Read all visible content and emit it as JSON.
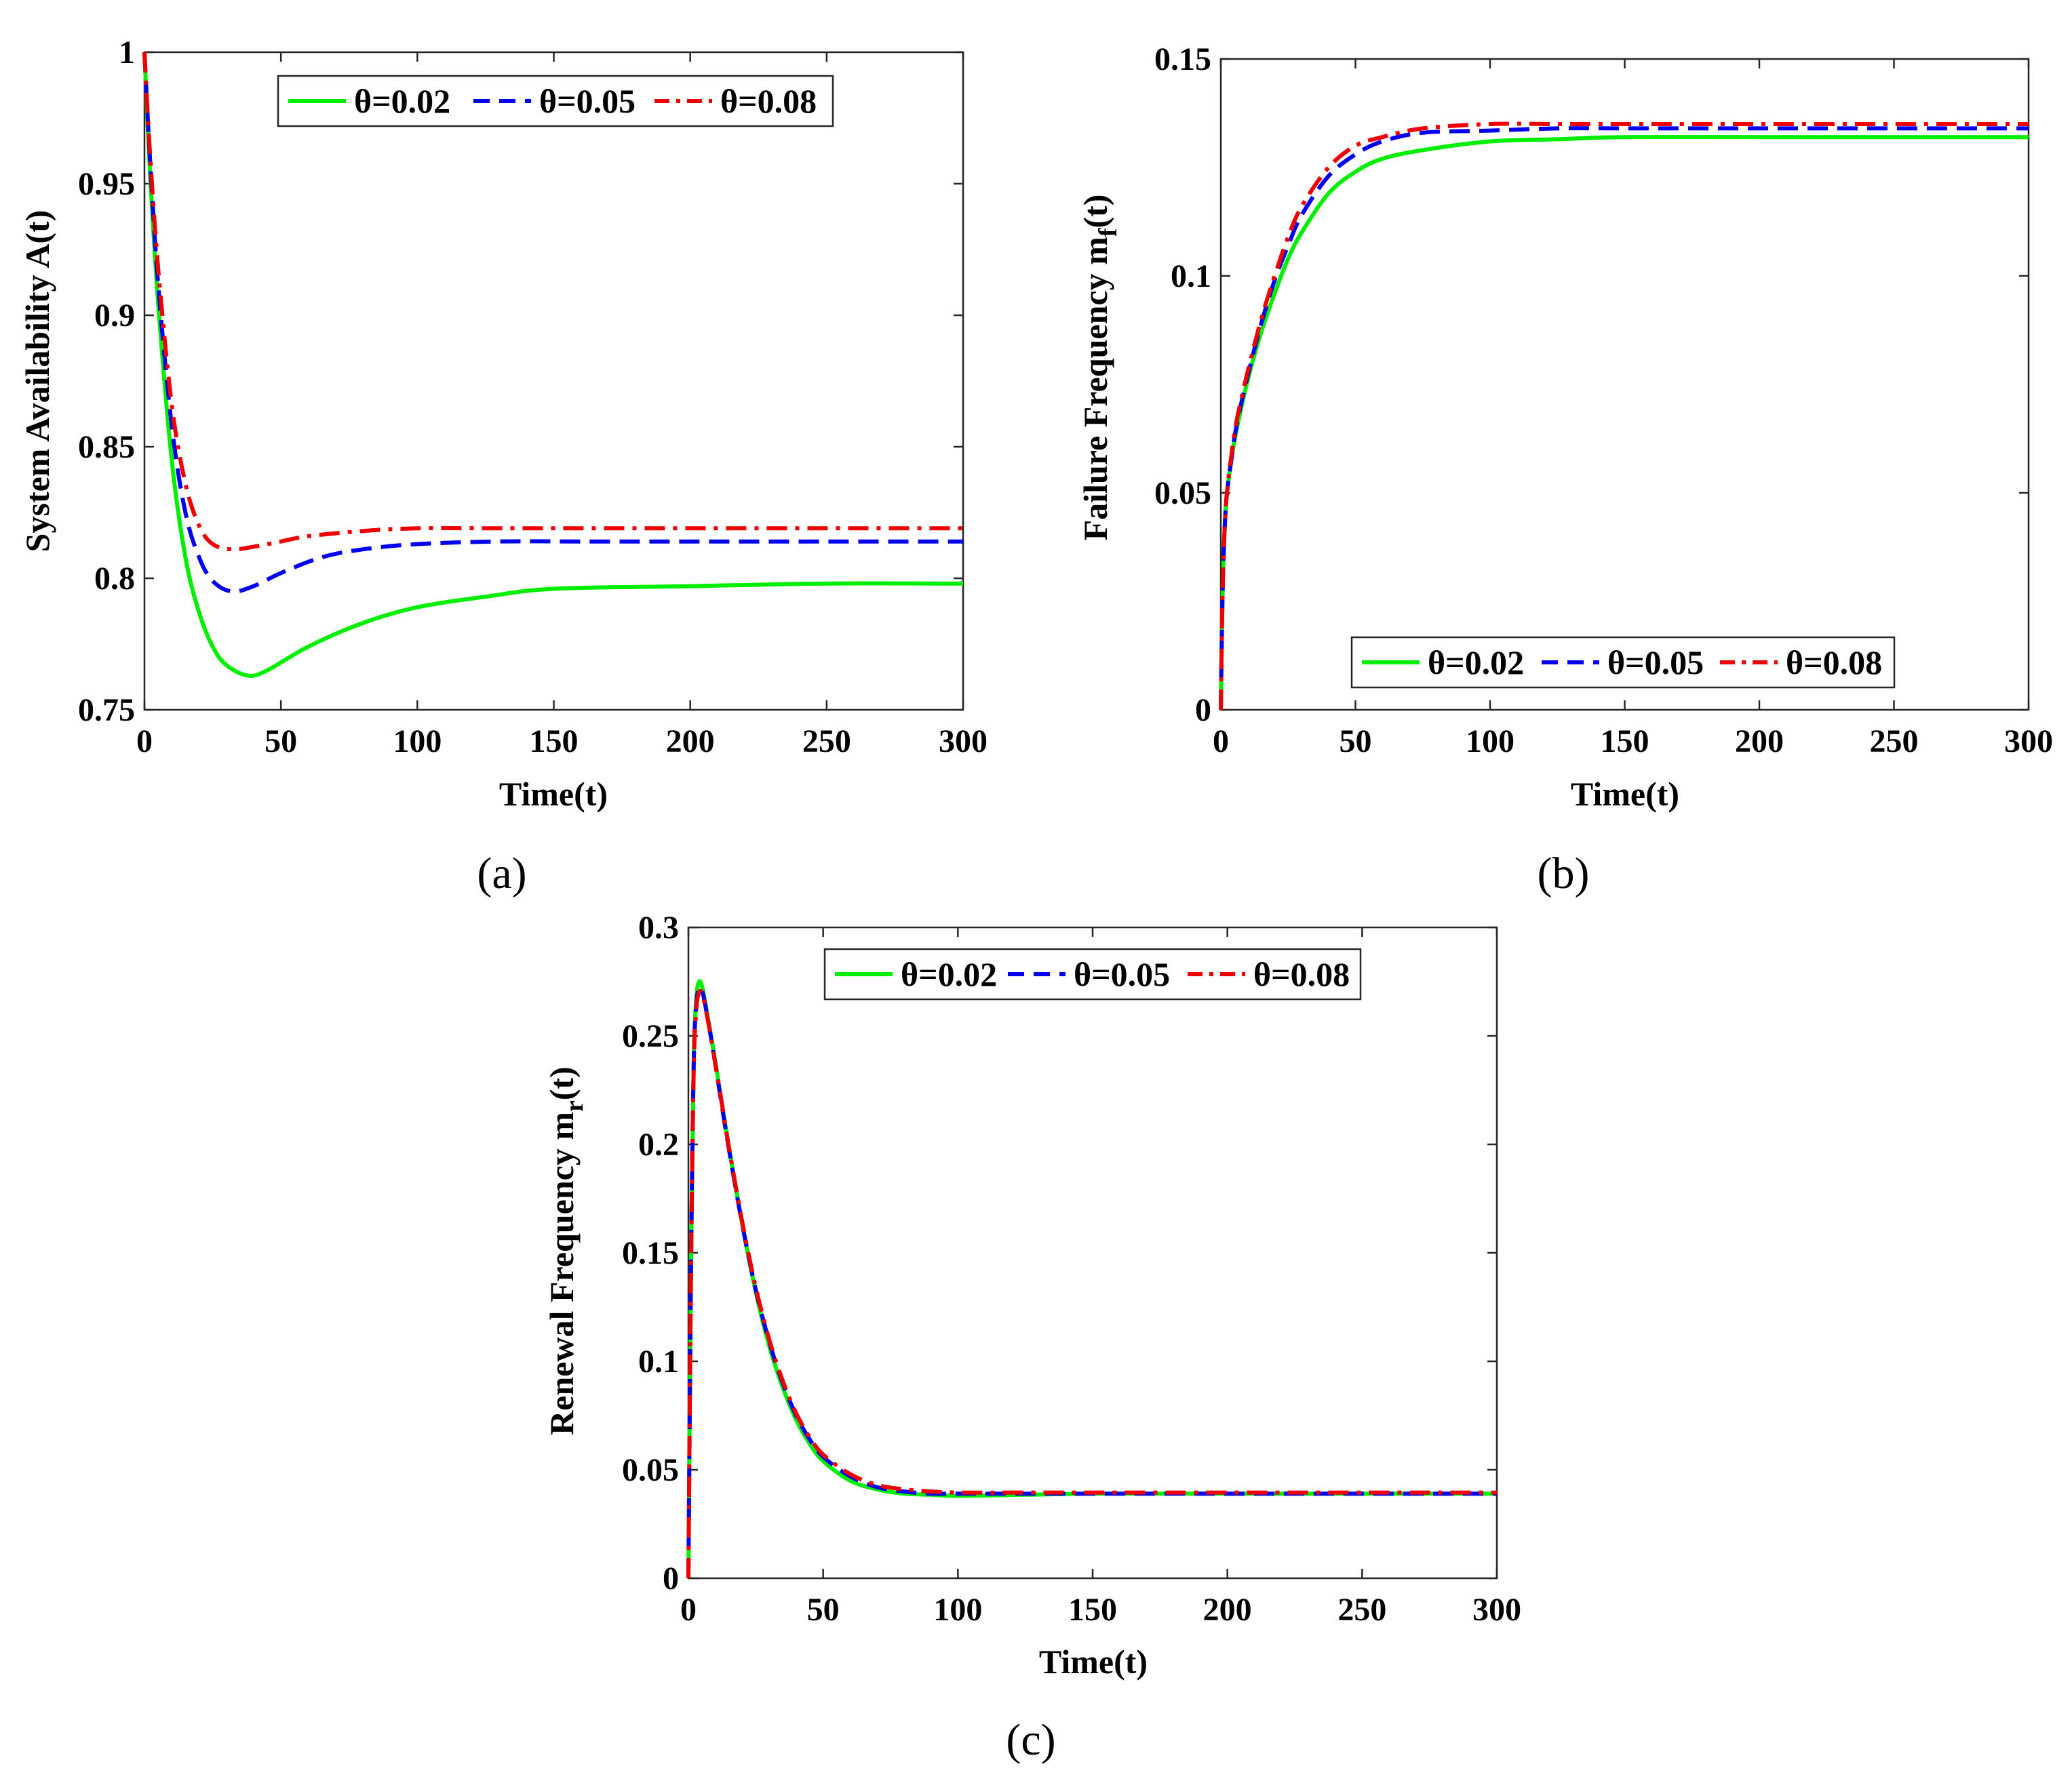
{
  "chart_data": [
    {
      "id": "a",
      "type": "line",
      "caption": "(a)",
      "xlabel": "Time(t)",
      "ylabel": "System Availability A(t)",
      "xlim": [
        0,
        300
      ],
      "ylim": [
        0.75,
        1
      ],
      "xticks": [
        0,
        50,
        100,
        150,
        200,
        250,
        300
      ],
      "yticks": [
        0.75,
        0.8,
        0.85,
        0.9,
        0.95,
        1
      ],
      "ytick_labels": [
        "0.75",
        "0.8",
        "0.85",
        "0.9",
        "0.95",
        "1"
      ],
      "legend_position": "top",
      "series": [
        {
          "name": "θ=0.02",
          "color": "#00ee00",
          "dash": "solid",
          "x": [
            0,
            2,
            5,
            10,
            15,
            20,
            25,
            30,
            38,
            45,
            60,
            80,
            100,
            125,
            150,
            200,
            250,
            300
          ],
          "y": [
            1,
            0.955,
            0.905,
            0.845,
            0.808,
            0.787,
            0.774,
            0.767,
            0.763,
            0.765,
            0.774,
            0.783,
            0.789,
            0.793,
            0.796,
            0.797,
            0.798,
            0.798
          ]
        },
        {
          "name": "θ=0.05",
          "color": "#0000ee",
          "dash": "dash",
          "x": [
            0,
            2,
            5,
            10,
            15,
            20,
            25,
            32,
            40,
            50,
            65,
            80,
            100,
            130,
            160,
            200,
            250,
            300
          ],
          "y": [
            1,
            0.96,
            0.912,
            0.858,
            0.825,
            0.808,
            0.799,
            0.795,
            0.797,
            0.802,
            0.808,
            0.811,
            0.813,
            0.814,
            0.814,
            0.814,
            0.814,
            0.814
          ]
        },
        {
          "name": "θ=0.08",
          "color": "#ee0000",
          "dash": "dashdot",
          "x": [
            0,
            2,
            5,
            10,
            15,
            20,
            25,
            32,
            40,
            50,
            60,
            80,
            100,
            130,
            160,
            200,
            250,
            300
          ],
          "y": [
            1,
            0.962,
            0.918,
            0.866,
            0.836,
            0.82,
            0.813,
            0.811,
            0.812,
            0.814,
            0.816,
            0.818,
            0.819,
            0.819,
            0.819,
            0.819,
            0.819,
            0.819
          ]
        }
      ]
    },
    {
      "id": "b",
      "type": "line",
      "caption": "(b)",
      "xlabel": "Time(t)",
      "ylabel": "Failure Frequency m_f(t)",
      "ylabel_main": "Failure Frequency m",
      "ylabel_sub": "f",
      "ylabel_tail": "(t)",
      "xlim": [
        0,
        300
      ],
      "ylim": [
        0,
        0.15
      ],
      "xticks": [
        0,
        50,
        100,
        150,
        200,
        250,
        300
      ],
      "yticks": [
        0,
        0.05,
        0.1,
        0.15
      ],
      "ytick_labels": [
        "0",
        "0.05",
        "0.1",
        "0.15"
      ],
      "legend_position": "bottom-right",
      "series": [
        {
          "name": "θ=0.02",
          "color": "#00ee00",
          "dash": "solid",
          "x": [
            0,
            0.5,
            1,
            2,
            4,
            6,
            10,
            15,
            20,
            25,
            30,
            40,
            50,
            60,
            75,
            100,
            125,
            150,
            200,
            250,
            300
          ],
          "y": [
            0,
            0.022,
            0.035,
            0.048,
            0.058,
            0.065,
            0.076,
            0.087,
            0.096,
            0.104,
            0.11,
            0.119,
            0.124,
            0.127,
            0.129,
            0.131,
            0.1315,
            0.132,
            0.132,
            0.132,
            0.132
          ]
        },
        {
          "name": "θ=0.05",
          "color": "#0000ee",
          "dash": "dash",
          "x": [
            0,
            0.5,
            1,
            2,
            4,
            6,
            10,
            15,
            20,
            25,
            30,
            40,
            50,
            60,
            75,
            100,
            125,
            150,
            200,
            250,
            300
          ],
          "y": [
            0,
            0.022,
            0.035,
            0.048,
            0.058,
            0.066,
            0.077,
            0.089,
            0.099,
            0.107,
            0.114,
            0.123,
            0.128,
            0.131,
            0.133,
            0.1335,
            0.134,
            0.134,
            0.134,
            0.134,
            0.134
          ]
        },
        {
          "name": "θ=0.08",
          "color": "#ee0000",
          "dash": "dashdot",
          "x": [
            0,
            0.5,
            1,
            2,
            4,
            6,
            10,
            15,
            20,
            25,
            30,
            40,
            50,
            60,
            75,
            100,
            125,
            150,
            200,
            250,
            300
          ],
          "y": [
            0,
            0.022,
            0.035,
            0.048,
            0.059,
            0.067,
            0.078,
            0.09,
            0.1,
            0.109,
            0.116,
            0.125,
            0.13,
            0.132,
            0.134,
            0.135,
            0.135,
            0.135,
            0.135,
            0.135,
            0.135
          ]
        }
      ]
    },
    {
      "id": "c",
      "type": "line",
      "caption": "(c)",
      "xlabel": "Time(t)",
      "ylabel": "Renewal Frequency m_r(t)",
      "ylabel_main": "Renewal Frequency m",
      "ylabel_sub": "r",
      "ylabel_tail": "(t)",
      "xlim": [
        0,
        300
      ],
      "ylim": [
        0,
        0.3
      ],
      "xticks": [
        0,
        50,
        100,
        150,
        200,
        250,
        300
      ],
      "yticks": [
        0,
        0.05,
        0.1,
        0.15,
        0.2,
        0.25,
        0.3
      ],
      "ytick_labels": [
        "0",
        "0.05",
        "0.1",
        "0.15",
        "0.2",
        "0.25",
        "0.3"
      ],
      "legend_position": "top",
      "series": [
        {
          "name": "θ=0.02",
          "color": "#00ee00",
          "dash": "solid",
          "x": [
            0,
            1,
            2,
            3,
            4,
            5,
            6,
            8,
            10,
            12,
            15,
            20,
            25,
            30,
            35,
            40,
            45,
            50,
            60,
            70,
            80,
            90,
            100,
            125,
            150,
            200,
            250,
            300
          ],
          "y": [
            0,
            0.15,
            0.24,
            0.268,
            0.275,
            0.273,
            0.267,
            0.253,
            0.238,
            0.222,
            0.199,
            0.163,
            0.132,
            0.107,
            0.088,
            0.073,
            0.062,
            0.054,
            0.045,
            0.041,
            0.039,
            0.0385,
            0.038,
            0.0385,
            0.039,
            0.039,
            0.039,
            0.039
          ]
        },
        {
          "name": "θ=0.05",
          "color": "#0000ee",
          "dash": "dash",
          "x": [
            0,
            1,
            2,
            3,
            4,
            5,
            6,
            8,
            10,
            12,
            15,
            20,
            25,
            30,
            35,
            40,
            45,
            50,
            60,
            70,
            80,
            90,
            100,
            125,
            150,
            200,
            250,
            300
          ],
          "y": [
            0,
            0.148,
            0.238,
            0.265,
            0.272,
            0.271,
            0.266,
            0.252,
            0.237,
            0.221,
            0.198,
            0.163,
            0.133,
            0.109,
            0.09,
            0.075,
            0.064,
            0.056,
            0.047,
            0.042,
            0.04,
            0.039,
            0.039,
            0.039,
            0.039,
            0.039,
            0.039,
            0.039
          ]
        },
        {
          "name": "θ=0.08",
          "color": "#ee0000",
          "dash": "dashdot",
          "x": [
            0,
            1,
            2,
            3,
            4,
            5,
            6,
            8,
            10,
            12,
            15,
            20,
            25,
            30,
            35,
            40,
            45,
            50,
            60,
            70,
            80,
            90,
            100,
            125,
            150,
            200,
            250,
            300
          ],
          "y": [
            0,
            0.146,
            0.236,
            0.263,
            0.27,
            0.27,
            0.265,
            0.252,
            0.237,
            0.222,
            0.199,
            0.164,
            0.134,
            0.11,
            0.091,
            0.076,
            0.065,
            0.057,
            0.048,
            0.043,
            0.041,
            0.04,
            0.0395,
            0.0395,
            0.0395,
            0.0395,
            0.0395,
            0.0395
          ]
        }
      ]
    }
  ]
}
